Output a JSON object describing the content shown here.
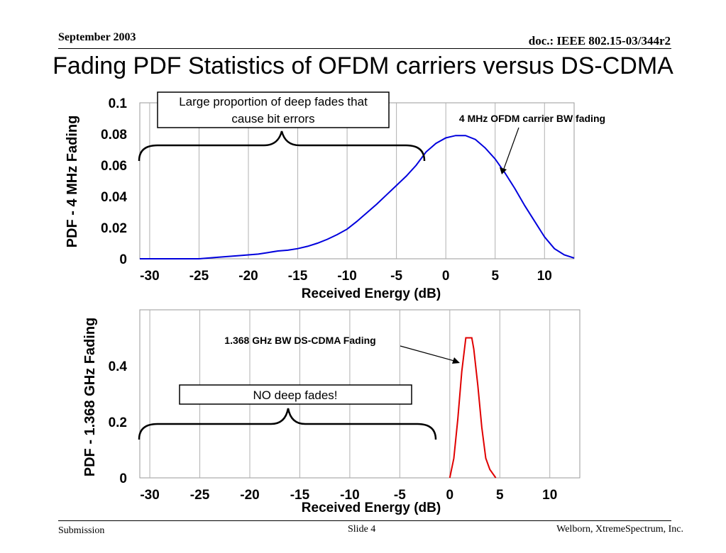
{
  "header": {
    "date": "September 2003",
    "doc": "doc.: IEEE 802.15-03/344r2"
  },
  "title": "Fading PDF Statistics of OFDM carriers versus DS-CDMA",
  "footer": {
    "left": "Submission",
    "center": "Slide 4",
    "right": "Welborn, XtremeSpectrum, Inc."
  },
  "chart_data": [
    {
      "type": "line",
      "xlabel": "Received Energy (dB)",
      "ylabel": "PDF - 4 MHz Fading",
      "xlim": [
        -31,
        13
      ],
      "ylim": [
        0,
        0.1
      ],
      "x_ticks": [
        "-30",
        "-25",
        "-20",
        "-15",
        "-10",
        "-5",
        "0",
        "5",
        "10"
      ],
      "y_ticks": [
        "0",
        "0.02",
        "0.04",
        "0.06",
        "0.08",
        "0.1"
      ],
      "grid": "vertical",
      "color": "#0000dd",
      "series": [
        {
          "x": [
            -31,
            -28,
            -25,
            -23,
            -21,
            -19,
            -18,
            -17,
            -16,
            -15,
            -14,
            -13,
            -12,
            -11,
            -10,
            -9,
            -8,
            -7,
            -6,
            -5,
            -4,
            -3,
            -2,
            -1,
            0,
            1,
            2,
            3,
            4,
            5,
            6,
            7,
            8,
            9,
            10,
            11,
            12,
            13
          ],
          "values": [
            0,
            0,
            0,
            0.001,
            0.002,
            0.003,
            0.004,
            0.005,
            0.0055,
            0.0065,
            0.008,
            0.01,
            0.0125,
            0.0155,
            0.019,
            0.024,
            0.0295,
            0.035,
            0.041,
            0.047,
            0.053,
            0.06,
            0.0685,
            0.074,
            0.0775,
            0.079,
            0.079,
            0.0765,
            0.071,
            0.064,
            0.055,
            0.045,
            0.034,
            0.024,
            0.014,
            0.0065,
            0.0025,
            0.0005
          ]
        }
      ],
      "annotations": {
        "box": "Large proportion of deep fades that cause bit errors",
        "label": "4 MHz OFDM carrier BW fading"
      }
    },
    {
      "type": "line",
      "xlabel": "Received Energy (dB)",
      "ylabel": "PDF - 1.368 GHz Fading",
      "xlim": [
        -31,
        13
      ],
      "ylim": [
        0,
        0.6
      ],
      "x_ticks": [
        "-30",
        "-25",
        "-20",
        "-15",
        "-10",
        "-5",
        "0",
        "5",
        "10"
      ],
      "y_ticks": [
        "0",
        "0.2",
        "0.4"
      ],
      "grid": "vertical",
      "color": "#e00000",
      "series": [
        {
          "x": [
            0,
            0.4,
            0.8,
            1.2,
            1.6,
            2.0,
            2.2,
            2.4,
            2.8,
            3.2,
            3.6,
            4.0,
            4.6
          ],
          "values": [
            0,
            0.07,
            0.21,
            0.38,
            0.5,
            0.5,
            0.5,
            0.46,
            0.33,
            0.18,
            0.07,
            0.03,
            0
          ]
        }
      ],
      "annotations": {
        "box": "NO deep fades!",
        "label": "1.368 GHz BW DS-CDMA Fading"
      }
    }
  ]
}
